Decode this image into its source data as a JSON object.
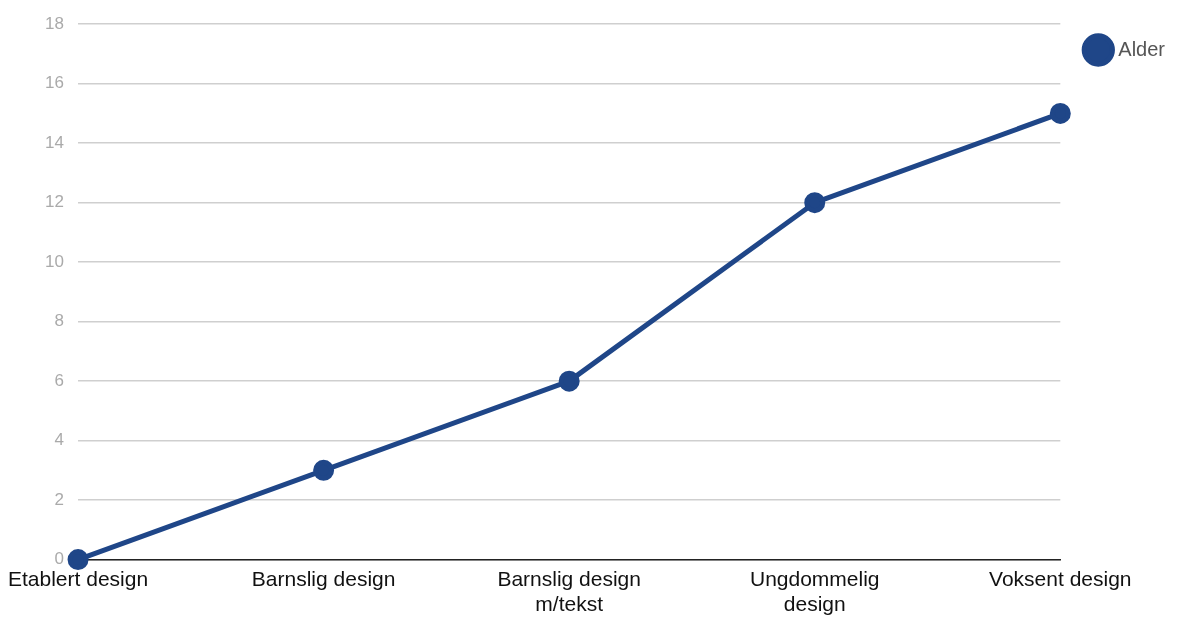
{
  "chart_data": {
    "type": "line",
    "categories": [
      "Etablert design",
      "Barnslig design",
      "Barnslig design m/tekst",
      "Ungdommelig design",
      "Voksent design"
    ],
    "series": [
      {
        "name": "Alder",
        "color": "#1f4688",
        "values": [
          0,
          3,
          6,
          12,
          15
        ]
      }
    ],
    "ylim": [
      0,
      18
    ],
    "yticks": [
      0,
      2,
      4,
      6,
      8,
      10,
      12,
      14,
      16,
      18
    ],
    "grid": "y",
    "legend": "top right",
    "marker": "circle",
    "line_style": "solid"
  }
}
